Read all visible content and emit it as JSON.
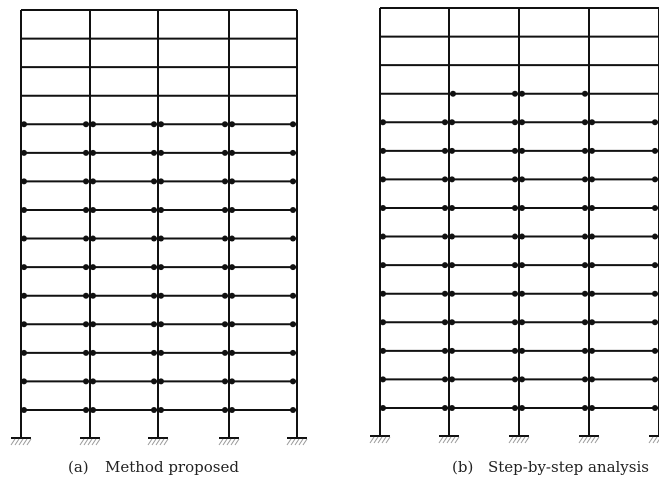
{
  "panels": [
    {
      "label": "(a)",
      "caption": "Method proposed"
    },
    {
      "label": "(b)",
      "caption": "Step-by-step analysis"
    }
  ]
}
